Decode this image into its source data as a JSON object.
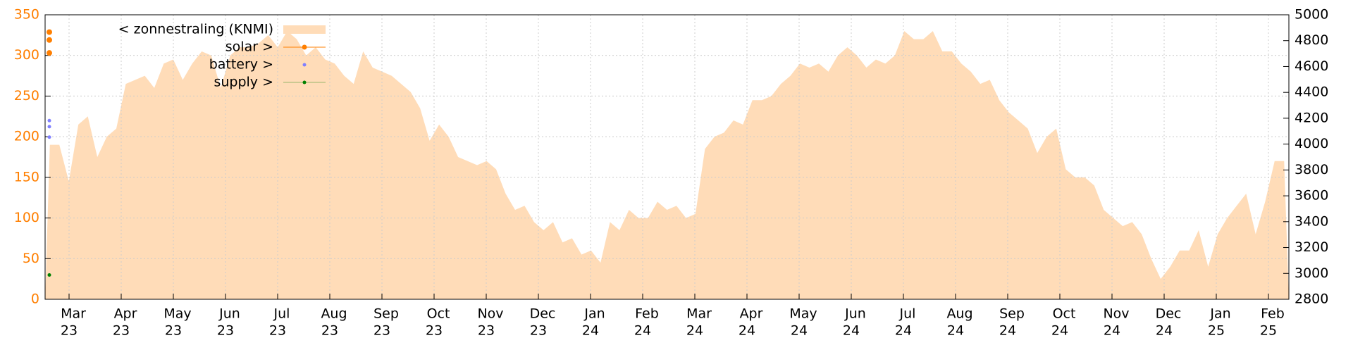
{
  "chart_data": {
    "type": "area",
    "x_tick_labels": [
      [
        "Mar",
        "23"
      ],
      [
        "Apr",
        "23"
      ],
      [
        "May",
        "23"
      ],
      [
        "Jun",
        "23"
      ],
      [
        "Jul",
        "23"
      ],
      [
        "Aug",
        "23"
      ],
      [
        "Sep",
        "23"
      ],
      [
        "Oct",
        "23"
      ],
      [
        "Nov",
        "23"
      ],
      [
        "Dec",
        "23"
      ],
      [
        "Jan",
        "24"
      ],
      [
        "Feb",
        "24"
      ],
      [
        "Mar",
        "24"
      ],
      [
        "Apr",
        "24"
      ],
      [
        "May",
        "24"
      ],
      [
        "Jun",
        "24"
      ],
      [
        "Jul",
        "24"
      ],
      [
        "Aug",
        "24"
      ],
      [
        "Sep",
        "24"
      ],
      [
        "Oct",
        "24"
      ],
      [
        "Nov",
        "24"
      ],
      [
        "Dec",
        "24"
      ],
      [
        "Jan",
        "25"
      ],
      [
        "Feb",
        "25"
      ]
    ],
    "ylim": [
      0,
      350
    ],
    "yticks": [
      0,
      50,
      100,
      150,
      200,
      250,
      300,
      350
    ],
    "y2lim": [
      2800,
      5000
    ],
    "y2ticks": [
      2800,
      3000,
      3200,
      3400,
      3600,
      3800,
      4000,
      4200,
      4400,
      4600,
      4800,
      5000
    ],
    "grid": true,
    "series": [
      {
        "name": "< zonnestraling (KNMI)",
        "color": "#ffdcb8",
        "axis": "y",
        "values": [
          190,
          190,
          145,
          215,
          225,
          175,
          200,
          210,
          265,
          270,
          275,
          260,
          290,
          295,
          270,
          290,
          305,
          300,
          260,
          300,
          310,
          310,
          315,
          325,
          310,
          330,
          320,
          300,
          310,
          295,
          290,
          275,
          265,
          305,
          285,
          280,
          275,
          265,
          255,
          235,
          195,
          215,
          200,
          175,
          170,
          165,
          170,
          160,
          130,
          110,
          115,
          95,
          85,
          95,
          70,
          75,
          55,
          60,
          45,
          95,
          85,
          110,
          100,
          100,
          120,
          110,
          115,
          100,
          105,
          185,
          200,
          205,
          220,
          215,
          245,
          245,
          250,
          265,
          275,
          290,
          285,
          290,
          280,
          300,
          310,
          300,
          285,
          295,
          290,
          300,
          330,
          320,
          320,
          330,
          305,
          305,
          290,
          280,
          265,
          270,
          245,
          230,
          220,
          210,
          180,
          200,
          210,
          160,
          150,
          150,
          140,
          110,
          100,
          90,
          95,
          80,
          50,
          25,
          40,
          60,
          60,
          85,
          40,
          80,
          100,
          115,
          130,
          80,
          120,
          170,
          170
        ]
      },
      {
        "name": "solar >",
        "color": "#ff7f00",
        "axis": "y2",
        "values": [
          4866,
          4805,
          4705
        ]
      },
      {
        "name": "battery >",
        "color": "#8080ff",
        "axis": "y2",
        "values": [
          4182,
          4135,
          4054
        ]
      },
      {
        "name": "supply >",
        "color": "#008000",
        "axis": "y2",
        "values": [
          2988
        ]
      }
    ]
  }
}
